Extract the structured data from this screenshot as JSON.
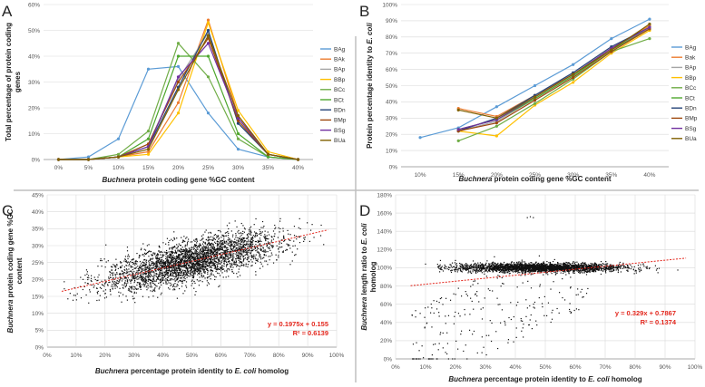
{
  "panel_letters": [
    "A",
    "B",
    "C",
    "D"
  ],
  "chart_data": [
    {
      "panel": "A",
      "type": "line",
      "title": "",
      "xlabel_italic": "Buchnera",
      "xlabel_rest": " protein coding gene %GC content",
      "ylabel": [
        "Total percentage of protein coding",
        "genes"
      ],
      "categories": [
        "0%",
        "5%",
        "10%",
        "15%",
        "20%",
        "25%",
        "30%",
        "35%",
        "40%"
      ],
      "yticks": [
        "0%",
        "10%",
        "20%",
        "30%",
        "40%",
        "50%",
        "60%"
      ],
      "ylim": [
        0,
        60
      ],
      "grid": true,
      "legend": "right",
      "series": [
        {
          "name": "BAg",
          "color": "#5b9bd5",
          "values": [
            0,
            1,
            8,
            35,
            36,
            18,
            4,
            1,
            0
          ]
        },
        {
          "name": "BAk",
          "color": "#ed7d31",
          "values": [
            0,
            0,
            1,
            3,
            22,
            54,
            17,
            2,
            0
          ]
        },
        {
          "name": "BAp",
          "color": "#a5a5a5",
          "values": [
            0,
            0,
            1,
            6,
            31,
            49,
            14,
            2,
            0
          ]
        },
        {
          "name": "BBp",
          "color": "#ffc000",
          "values": [
            0,
            0,
            1,
            2,
            18,
            53,
            19,
            3,
            0
          ]
        },
        {
          "name": "BCc",
          "color": "#70ad47",
          "values": [
            0,
            0,
            2,
            11,
            45,
            32,
            8,
            1,
            0
          ]
        },
        {
          "name": "BCt",
          "color": "#4ea72e",
          "values": [
            0,
            0,
            1,
            8,
            40,
            40,
            10,
            1,
            0
          ]
        },
        {
          "name": "BDn",
          "color": "#264478",
          "values": [
            0,
            0,
            1,
            5,
            28,
            50,
            14,
            2,
            0
          ]
        },
        {
          "name": "BMp",
          "color": "#9e480e",
          "values": [
            0,
            0,
            1,
            6,
            30,
            47,
            15,
            2,
            0
          ]
        },
        {
          "name": "BSg",
          "color": "#7030a0",
          "values": [
            0,
            0,
            1,
            5,
            32,
            45,
            16,
            2,
            0
          ]
        },
        {
          "name": "BUa",
          "color": "#806000",
          "values": [
            0,
            0,
            1,
            4,
            27,
            48,
            17,
            2,
            0
          ]
        }
      ]
    },
    {
      "panel": "B",
      "type": "line",
      "title": "",
      "xlabel_italic": "Buchnera",
      "xlabel_rest": " protein coding gene %GC content",
      "ylabel_plain": "Protein percentage identity to ",
      "ylabel_italic": "E. coli",
      "categories": [
        "10%",
        "15%",
        "20%",
        "25%",
        "30%",
        "35%",
        "40%"
      ],
      "yticks": [
        "0%",
        "10%",
        "20%",
        "30%",
        "40%",
        "50%",
        "60%",
        "70%",
        "80%",
        "90%",
        "100%"
      ],
      "ylim": [
        0,
        100
      ],
      "grid": true,
      "legend": "right",
      "series": [
        {
          "name": "BAg",
          "color": "#5b9bd5",
          "values": [
            18,
            24,
            37,
            50,
            63,
            79,
            91
          ]
        },
        {
          "name": "Bak",
          "color": "#ed7d31",
          "values": [
            null,
            36,
            31,
            44,
            57,
            73,
            87
          ]
        },
        {
          "name": "BAp",
          "color": "#a5a5a5",
          "values": [
            null,
            22,
            28,
            42,
            56,
            72,
            86
          ]
        },
        {
          "name": "BBp",
          "color": "#ffc000",
          "values": [
            null,
            22,
            19,
            38,
            52,
            70,
            84
          ]
        },
        {
          "name": "BCc",
          "color": "#70ad47",
          "values": [
            null,
            16,
            25,
            39,
            54,
            71,
            79
          ]
        },
        {
          "name": "BCt",
          "color": "#4ea72e",
          "values": [
            null,
            23,
            29,
            42,
            56,
            72,
            85
          ]
        },
        {
          "name": "BDn",
          "color": "#264478",
          "values": [
            null,
            22,
            30,
            44,
            58,
            74,
            86
          ]
        },
        {
          "name": "BMp",
          "color": "#9e480e",
          "values": [
            null,
            22,
            27,
            41,
            55,
            71,
            85
          ]
        },
        {
          "name": "BSg",
          "color": "#7030a0",
          "values": [
            null,
            23,
            29,
            43,
            57,
            73,
            86
          ]
        },
        {
          "name": "BUa",
          "color": "#806000",
          "values": [
            null,
            35,
            30,
            43,
            57,
            72,
            88
          ]
        }
      ]
    },
    {
      "panel": "C",
      "type": "scatter",
      "title": "",
      "xlabel_italic": "Buchnera",
      "xlabel_rest": " percentage protein identity to ",
      "xlabel_italic2": "E. coli",
      "xlabel_rest2": " homolog",
      "ylabel_italic": "Buchnera",
      "ylabel_rest": " protein coding gene %GC",
      "ylabel_line2": "content",
      "xticks": [
        "0%",
        "10%",
        "20%",
        "30%",
        "40%",
        "50%",
        "60%",
        "70%",
        "80%",
        "90%",
        "100%"
      ],
      "yticks": [
        "0%",
        "5%",
        "10%",
        "15%",
        "20%",
        "25%",
        "30%",
        "35%",
        "40%",
        "45%"
      ],
      "xlim": [
        0,
        100
      ],
      "ylim": [
        0,
        45
      ],
      "grid": true,
      "trendline": {
        "slope": 0.1975,
        "intercept": 15.5,
        "x_range": [
          5,
          97
        ],
        "color": "#e3261c"
      },
      "equation": "y = 0.1975x + 0.155",
      "r_squared": "R² = 0.6139"
    },
    {
      "panel": "D",
      "type": "scatter",
      "title": "",
      "xlabel_italic": "Buchnera",
      "xlabel_rest": " percentage protein identity to ",
      "xlabel_italic2": "E. coli",
      "xlabel_rest2": " homolog",
      "ylabel_italic": "Buchnera",
      "ylabel_rest": " length ratio to ",
      "ylabel_italic2": "E. coli",
      "ylabel_line2": "homolog",
      "xticks": [
        "0%",
        "10%",
        "20%",
        "30%",
        "40%",
        "50%",
        "60%",
        "70%",
        "80%",
        "90%",
        "100%"
      ],
      "yticks": [
        "0%",
        "20%",
        "40%",
        "60%",
        "80%",
        "100%",
        "120%",
        "140%",
        "160%",
        "180%"
      ],
      "xlim": [
        0,
        100
      ],
      "ylim": [
        0,
        180
      ],
      "grid": true,
      "trendline": {
        "slope": 0.329,
        "intercept": 78.67,
        "x_range": [
          5,
          97
        ],
        "color": "#e3261c"
      },
      "equation": "y = 0.329x + 0.7867",
      "r_squared": "R² = 0.1374"
    }
  ]
}
